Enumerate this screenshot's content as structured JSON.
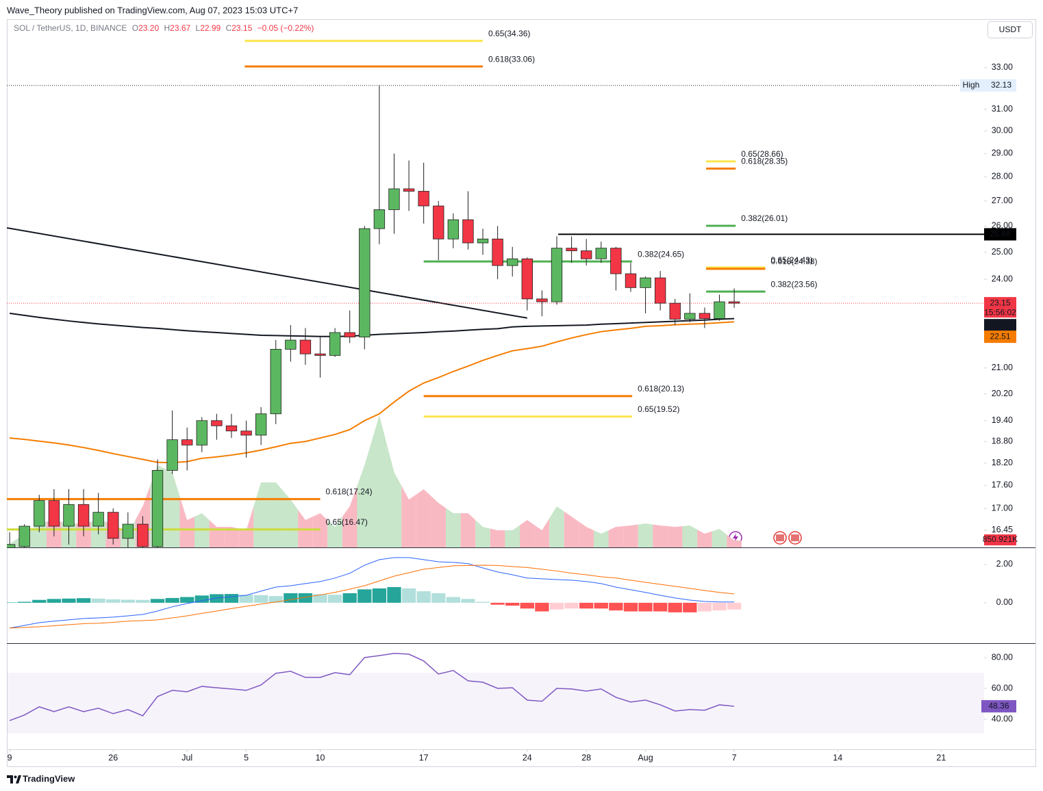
{
  "header": {
    "publisher": "Wave_Theory published on TradingView.com, Aug 07, 2023 15:03 UTC+7",
    "brand": "TradingView"
  },
  "chart_data": {
    "type": "candlestick",
    "symbol": "SOL / TetherUS, 1D, BINANCE",
    "ohlc": [
      {
        "key": "O",
        "text": "23.20"
      },
      {
        "key": "H",
        "text": "23.67"
      },
      {
        "key": "L",
        "text": "22.99"
      },
      {
        "key": "C",
        "text": "23.15"
      }
    ],
    "change": "−0.05 (−0.22%)",
    "currency": "USDT",
    "countdown": "15:56:02",
    "colors": {
      "up": "#5cb860",
      "down": "#f23645",
      "wick": "#1e1e1e",
      "volume_up": "#c8e6c9",
      "volume_down": "#f9b9c3"
    },
    "x": [
      0,
      1,
      2,
      3,
      4,
      5,
      6,
      7,
      8,
      9,
      10,
      11,
      12,
      13,
      14,
      15,
      16,
      17,
      18,
      19,
      20,
      21,
      22,
      23,
      24,
      25,
      26,
      27,
      28,
      29,
      30,
      31,
      32,
      33,
      34,
      35,
      36,
      37,
      38,
      39,
      40,
      41,
      42,
      43,
      44,
      45,
      46,
      47,
      48,
      49
    ],
    "open": [
      16.0,
      16.05,
      16.55,
      17.2,
      16.55,
      17.1,
      16.55,
      16.9,
      16.25,
      16.6,
      16.05,
      18.0,
      18.85,
      18.7,
      19.4,
      19.25,
      19.1,
      18.98,
      19.6,
      21.6,
      21.9,
      21.45,
      21.4,
      22.15,
      22.0,
      25.9,
      26.65,
      27.5,
      27.4,
      26.8,
      25.5,
      26.25,
      25.35,
      25.5,
      24.5,
      24.75,
      23.3,
      23.2,
      25.15,
      25.05,
      24.75,
      25.15,
      24.2,
      23.7,
      24.05,
      23.15,
      22.6,
      22.8,
      22.62,
      23.2
    ],
    "high": [
      16.4,
      16.6,
      17.35,
      17.5,
      17.5,
      17.5,
      17.4,
      17.0,
      16.9,
      16.8,
      18.3,
      19.7,
      19.2,
      19.5,
      19.6,
      19.6,
      19.4,
      19.8,
      21.9,
      22.4,
      22.3,
      22.0,
      22.3,
      22.9,
      26.0,
      32.13,
      29.0,
      28.7,
      28.6,
      27.0,
      26.5,
      27.4,
      25.9,
      26.0,
      25.2,
      24.8,
      23.6,
      25.6,
      25.6,
      25.5,
      25.4,
      25.2,
      24.6,
      24.1,
      24.3,
      23.3,
      23.5,
      23.0,
      23.45,
      23.67
    ],
    "low": [
      15.9,
      16.0,
      16.4,
      16.3,
      16.1,
      16.3,
      16.35,
      16.1,
      16.0,
      16.0,
      16.0,
      17.9,
      18.0,
      18.5,
      18.85,
      18.9,
      18.35,
      18.7,
      19.3,
      21.2,
      21.1,
      20.7,
      21.35,
      21.8,
      21.6,
      25.3,
      25.7,
      26.6,
      26.1,
      24.7,
      25.15,
      25.1,
      24.9,
      24.0,
      24.1,
      22.9,
      22.7,
      23.1,
      24.6,
      24.5,
      24.6,
      23.6,
      23.55,
      22.8,
      22.9,
      22.4,
      22.5,
      22.3,
      22.55,
      22.99
    ],
    "close": [
      16.1,
      16.55,
      17.2,
      16.55,
      17.1,
      16.55,
      16.9,
      16.25,
      16.6,
      16.05,
      18.0,
      18.85,
      18.7,
      19.4,
      19.25,
      19.1,
      18.98,
      19.6,
      21.6,
      21.9,
      21.45,
      21.4,
      22.15,
      22.0,
      25.9,
      26.65,
      27.5,
      27.4,
      26.8,
      25.5,
      26.25,
      25.35,
      25.5,
      24.5,
      24.75,
      23.3,
      23.2,
      25.15,
      25.05,
      24.75,
      25.15,
      24.2,
      23.7,
      24.05,
      23.15,
      22.6,
      22.8,
      22.62,
      23.2,
      23.15
    ],
    "xlim": [
      -0.19,
      65.9
    ],
    "xticks": [
      {
        "value": 0,
        "label": "9"
      },
      {
        "value": 7,
        "label": "26"
      },
      {
        "value": 12,
        "label": "Jul"
      },
      {
        "value": 16,
        "label": "5"
      },
      {
        "value": 21,
        "label": "10"
      },
      {
        "value": 28,
        "label": "17"
      },
      {
        "value": 35,
        "label": "24"
      },
      {
        "value": 39,
        "label": "28"
      },
      {
        "value": 43,
        "label": "Aug"
      },
      {
        "value": 49,
        "label": "7"
      },
      {
        "value": 56,
        "label": "14"
      },
      {
        "value": 63,
        "label": "21"
      }
    ],
    "ylim": [
      16.03,
      35.5
    ],
    "log": true,
    "yticks": [
      {
        "value": 33,
        "label": "33.00"
      },
      {
        "value": 31,
        "label": "31.00"
      },
      {
        "value": 30,
        "label": "30.00"
      },
      {
        "value": 29,
        "label": "29.00"
      },
      {
        "value": 28,
        "label": "28.00"
      },
      {
        "value": 27,
        "label": "27.00"
      },
      {
        "value": 26,
        "label": "26.00"
      },
      {
        "value": 25,
        "label": "25.00"
      },
      {
        "value": 24,
        "label": "24.00"
      },
      {
        "value": 21,
        "label": "21.00"
      },
      {
        "value": 20.2,
        "label": "20.20"
      },
      {
        "value": 19.4,
        "label": "19.40"
      },
      {
        "value": 18.8,
        "label": "18.80"
      },
      {
        "value": 18.2,
        "label": "18.20"
      },
      {
        "value": 17.6,
        "label": "17.60"
      },
      {
        "value": 17,
        "label": "17.00"
      },
      {
        "value": 16.45,
        "label": "16.45"
      }
    ],
    "moving_averages": [
      {
        "color": "#131722",
        "values": [
          22.8,
          22.73,
          22.66,
          22.6,
          22.54,
          22.49,
          22.44,
          22.4,
          22.36,
          22.32,
          22.29,
          22.25,
          22.21,
          22.18,
          22.15,
          22.12,
          22.09,
          22.06,
          22.05,
          22.04,
          22.03,
          22.02,
          22.02,
          22.03,
          22.06,
          22.09,
          22.11,
          22.13,
          22.15,
          22.18,
          22.2,
          22.23,
          22.26,
          22.28,
          22.34,
          22.36,
          22.37,
          22.38,
          22.39,
          22.4,
          22.43,
          22.45,
          22.47,
          22.49,
          22.51,
          22.53,
          22.55,
          22.57,
          22.6,
          22.62
        ]
      },
      {
        "color": "#f57c00",
        "values": [
          18.9,
          18.86,
          18.81,
          18.76,
          18.7,
          18.63,
          18.55,
          18.46,
          18.38,
          18.3,
          18.22,
          18.21,
          18.24,
          18.33,
          18.37,
          18.42,
          18.48,
          18.56,
          18.65,
          18.75,
          18.8,
          18.9,
          19.0,
          19.14,
          19.4,
          19.6,
          19.95,
          20.28,
          20.53,
          20.7,
          20.89,
          21.06,
          21.24,
          21.4,
          21.55,
          21.62,
          21.7,
          21.84,
          21.97,
          22.08,
          22.18,
          22.24,
          22.29,
          22.36,
          22.38,
          22.41,
          22.43,
          22.45,
          22.48,
          22.51
        ]
      }
    ],
    "trendline": {
      "color": "#131722",
      "x": [
        -0.19,
        35
      ],
      "y": [
        25.93,
        22.64
      ]
    },
    "levels": [
      {
        "label": "High",
        "value": 32.13,
        "style": "dotted",
        "color": "#131722"
      },
      {
        "value": 25.68,
        "from": 37.1,
        "style": "solid",
        "color": "#000000"
      }
    ],
    "fib_levels": [
      {
        "label": "0.65(34.36)",
        "value": 34.36,
        "from": 15.9,
        "to": 32.0,
        "color": "#fbe44a"
      },
      {
        "label": "0.618(33.06)",
        "value": 33.06,
        "from": 15.9,
        "to": 32.0,
        "color": "#f57c00"
      },
      {
        "label": "0.65(28.66)",
        "value": 28.66,
        "from": 47.1,
        "to": 49.1,
        "color": "#fbe44a"
      },
      {
        "label": "0.618(28.35)",
        "value": 28.35,
        "from": 47.1,
        "to": 49.1,
        "color": "#f57c00"
      },
      {
        "label": "0.382(26.01)",
        "value": 26.01,
        "from": 47.1,
        "to": 49.1,
        "color": "#4caf50"
      },
      {
        "label": "0.382(24.65)",
        "value": 24.65,
        "from": 28.0,
        "to": 42.1,
        "color": "#4caf50"
      },
      {
        "label": "0.65(24.43)",
        "value": 24.43,
        "from": 47.1,
        "to": 51.1,
        "color": "#fbe44a"
      },
      {
        "label": "0.618(24.38)",
        "value": 24.38,
        "from": 47.1,
        "to": 51.1,
        "color": "#f57c00"
      },
      {
        "label": "0.382(23.56)",
        "value": 23.56,
        "from": 47.1,
        "to": 51.1,
        "color": "#4caf50"
      },
      {
        "label": "0.618(20.13)",
        "value": 20.13,
        "from": 28.0,
        "to": 42.1,
        "color": "#f57c00"
      },
      {
        "label": "0.65(19.52)",
        "value": 19.52,
        "from": 28.0,
        "to": 42.1,
        "color": "#fbe44a"
      },
      {
        "label": "0.618(17.24)",
        "value": 17.24,
        "from": -0.19,
        "to": 21.0,
        "color": "#f57c00"
      },
      {
        "label": "0.65(16.47)",
        "value": 16.47,
        "from": -0.19,
        "to": 21.0,
        "color": "#cddc39"
      }
    ],
    "volume": {
      "ylim": [
        0,
        17000000
      ],
      "values": [
        425000,
        1700000,
        2975000,
        3400000,
        2975000,
        2975000,
        3400000,
        2975000,
        1700000,
        5100000,
        10200000,
        9350000,
        3400000,
        4250000,
        2550000,
        2550000,
        2125000,
        8075000,
        8075000,
        5950000,
        3400000,
        4250000,
        2550000,
        5100000,
        10200000,
        16405000,
        9350000,
        5950000,
        7225000,
        5525000,
        4250000,
        4250000,
        2550000,
        2125000,
        2125000,
        3400000,
        2125000,
        5100000,
        3825000,
        2550000,
        1700000,
        2550000,
        2720000,
        2975000,
        2720000,
        2550000,
        2720000,
        1700000,
        2295000,
        850921
      ],
      "last_label": "850.921K"
    },
    "macd": {
      "ylim": [
        -2.11,
        2.89
      ],
      "yticks": [
        {
          "value": 2,
          "label": "2.00"
        },
        {
          "value": 0,
          "label": "0.00"
        }
      ],
      "macd_color": "#2962ff",
      "signal_color": "#ff6d00",
      "histogram_colors": {
        "up_grow": "#26a69a",
        "up_fall": "#b2dfdb",
        "down_grow": "#ff5252",
        "down_fall": "#ffcdd2"
      },
      "macd": [
        -1.32,
        -1.18,
        -1.04,
        -0.96,
        -0.89,
        -0.82,
        -0.79,
        -0.75,
        -0.68,
        -0.61,
        -0.43,
        -0.21,
        -0.04,
        0.11,
        0.25,
        0.32,
        0.39,
        0.61,
        0.82,
        0.89,
        1.0,
        1.11,
        1.29,
        1.54,
        1.96,
        2.25,
        2.36,
        2.36,
        2.25,
        2.14,
        2.11,
        2.04,
        1.82,
        1.61,
        1.46,
        1.29,
        1.25,
        1.21,
        1.18,
        1.11,
        1.0,
        0.82,
        0.68,
        0.54,
        0.39,
        0.25,
        0.14,
        0.07,
        0.04,
        0.04
      ],
      "signal": [
        -1.32,
        -1.29,
        -1.25,
        -1.2,
        -1.14,
        -1.09,
        -1.07,
        -1.02,
        -0.96,
        -0.93,
        -0.89,
        -0.79,
        -0.68,
        -0.55,
        -0.43,
        -0.3,
        -0.18,
        -0.07,
        0.04,
        0.16,
        0.29,
        0.41,
        0.54,
        0.71,
        0.89,
        1.14,
        1.39,
        1.57,
        1.75,
        1.84,
        1.93,
        1.95,
        1.96,
        1.95,
        1.89,
        1.84,
        1.75,
        1.66,
        1.54,
        1.46,
        1.36,
        1.29,
        1.18,
        1.07,
        0.96,
        0.86,
        0.75,
        0.64,
        0.54,
        0.46
      ],
      "histogram": [
        0.02,
        0.05,
        0.15,
        0.2,
        0.22,
        0.24,
        0.22,
        0.18,
        0.16,
        0.15,
        0.2,
        0.25,
        0.3,
        0.38,
        0.45,
        0.46,
        0.42,
        0.4,
        0.35,
        0.5,
        0.5,
        0.45,
        0.42,
        0.5,
        0.7,
        0.75,
        0.82,
        0.75,
        0.6,
        0.5,
        0.3,
        0.2,
        0.05,
        -0.1,
        -0.15,
        -0.3,
        -0.45,
        -0.35,
        -0.3,
        -0.3,
        -0.3,
        -0.4,
        -0.45,
        -0.45,
        -0.45,
        -0.5,
        -0.5,
        -0.45,
        -0.4,
        -0.35
      ]
    },
    "rsi": {
      "ylim": [
        21.78,
        89.33
      ],
      "yticks": [
        {
          "value": 80,
          "label": "80.00"
        },
        {
          "value": 60,
          "label": "60.00"
        },
        {
          "value": 40,
          "label": "40.00"
        }
      ],
      "band": [
        30.7,
        70.2
      ],
      "color": "#7e57c2",
      "values": [
        39.1,
        42.7,
        48.0,
        44.9,
        48.0,
        44.9,
        47.1,
        43.6,
        46.2,
        42.2,
        54.7,
        58.7,
        57.8,
        61.3,
        60.4,
        59.6,
        58.7,
        62.2,
        69.8,
        71.1,
        67.1,
        67.1,
        70.2,
        68.9,
        80.0,
        81.3,
        82.7,
        82.2,
        77.8,
        69.3,
        71.6,
        64.9,
        64.0,
        60.0,
        60.4,
        52.4,
        51.6,
        60.0,
        59.6,
        58.2,
        59.6,
        54.2,
        51.1,
        52.4,
        49.3,
        45.3,
        46.2,
        45.8,
        49.3,
        48.36
      ]
    }
  }
}
